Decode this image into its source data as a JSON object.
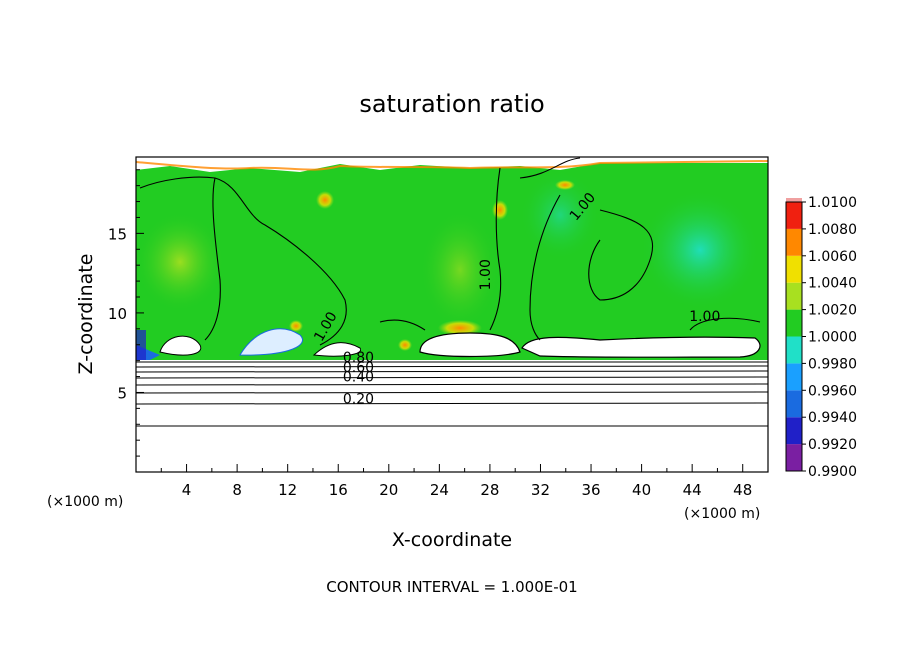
{
  "chart_data": {
    "type": "heatmap",
    "title": "saturation ratio",
    "xlabel": "X-coordinate",
    "ylabel": "Z-coordinate",
    "x_unit_left": "(×1000 m)",
    "x_unit_right": "(×1000 m)",
    "footer": "CONTOUR INTERVAL = 1.000E-01",
    "xlim": [
      0,
      50
    ],
    "ylim": [
      0,
      19.8
    ],
    "x_ticks": [
      4,
      8,
      12,
      16,
      20,
      24,
      28,
      32,
      36,
      40,
      44,
      48
    ],
    "x_tick_labels": [
      "4",
      "8",
      "12",
      "16",
      "20",
      "24",
      "28",
      "32",
      "36",
      "40",
      "44",
      "48"
    ],
    "y_ticks": [
      5,
      10,
      15
    ],
    "y_tick_labels": [
      "5",
      "10",
      "15"
    ],
    "colorbar": {
      "levels": [
        0.99,
        0.992,
        0.994,
        0.996,
        0.998,
        1.0,
        1.002,
        1.004,
        1.006,
        1.008,
        1.01
      ],
      "labels": [
        "0.9900",
        "0.9920",
        "0.9940",
        "0.9960",
        "0.9980",
        "1.0000",
        "1.0020",
        "1.0040",
        "1.0060",
        "1.0080",
        "1.0100"
      ],
      "colors": [
        "#7a1fa2",
        "#2020c8",
        "#1a6be0",
        "#1aa0ff",
        "#20e0c8",
        "#22cc22",
        "#a8e020",
        "#f0e000",
        "#ff8800",
        "#f02010",
        "#f0a0a0"
      ]
    },
    "contour_labels": [
      {
        "value": "1.00",
        "x": 15.3,
        "z": 9.0
      },
      {
        "value": "1.00",
        "x": 28.0,
        "z": 12.4
      },
      {
        "value": "1.00",
        "x": 35.6,
        "z": 16.5
      },
      {
        "value": "1.00",
        "x": 45.0,
        "z": 9.5
      },
      {
        "value": "0.80",
        "x": 17.6,
        "z": 6.9
      },
      {
        "value": "0.60",
        "x": 17.6,
        "z": 6.3
      },
      {
        "value": "0.40",
        "x": 17.6,
        "z": 5.7
      },
      {
        "value": "0.20",
        "x": 17.6,
        "z": 4.3
      }
    ],
    "stable_layer_contours_z": [
      6.6,
      6.3,
      5.9,
      5.5,
      5.0,
      4.2,
      2.9
    ],
    "grid": false,
    "legend": "right"
  }
}
